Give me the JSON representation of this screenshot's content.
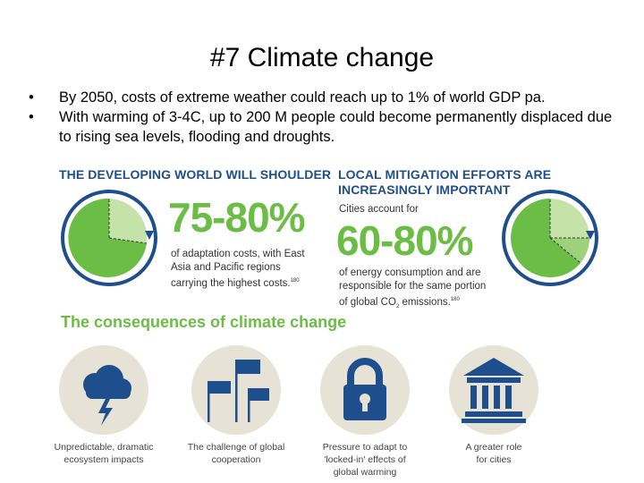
{
  "slide": {
    "title": "#7 Climate change",
    "bullets": [
      "By 2050, costs of extreme weather could reach up to 1% of world GDP pa.",
      "With warming of 3-4C, up to 200 M people could become permanently displaced due to rising sea levels, flooding and droughts."
    ]
  },
  "infographic": {
    "left_panel": {
      "heading": "THE DEVELOPING WORLD WILL SHOULDER",
      "percent": "75-80%",
      "desc_line1": "of adaptation costs, with East",
      "desc_line2": "Asia and Pacific regions",
      "desc_line3": "carrying the highest costs.",
      "ref": "180"
    },
    "right_panel": {
      "heading_line1": "LOCAL MITIGATION EFFORTS ARE",
      "heading_line2": "INCREASINGLY IMPORTANT",
      "intro": "Cities account for",
      "percent": "60-80%",
      "desc_line1": "of energy consumption and are",
      "desc_line2": "responsible for the same portion",
      "desc_line3_pre": "of global CO",
      "desc_line3_sub": "2",
      "desc_line3_post": " emissions.",
      "ref": "180"
    },
    "consequences": {
      "title": "The consequences of climate change",
      "items": [
        {
          "icon": "storm-cloud-icon",
          "line1": "Unpredictable, dramatic",
          "line2": "ecosystem impacts",
          "line3": ""
        },
        {
          "icon": "flags-icon",
          "line1": "The challenge of global",
          "line2": "cooperation",
          "line3": ""
        },
        {
          "icon": "padlock-icon",
          "line1": "Pressure to adapt to",
          "line2": "'locked-in' effects of",
          "line3": "global warming"
        },
        {
          "icon": "city-hall-icon",
          "line1": "A greater role",
          "line2": "for cities",
          "line3": ""
        }
      ]
    },
    "colors": {
      "green": "#6cbd45",
      "light_green": "#c5e3a8",
      "blue": "#1f4e8c",
      "beige": "#e6e2d6"
    }
  }
}
